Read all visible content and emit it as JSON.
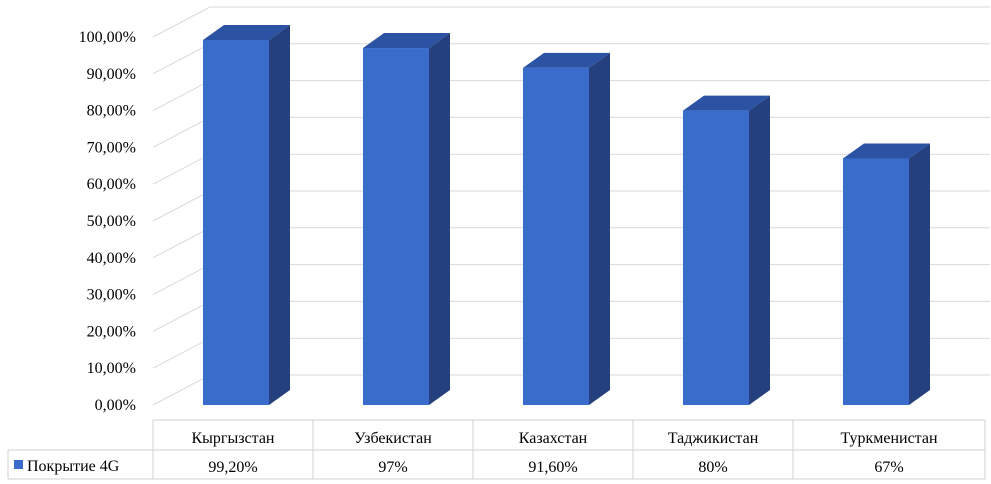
{
  "chart_data": {
    "type": "bar",
    "categories": [
      "Кыргызстан",
      "Узбекистан",
      "Казахстан",
      "Таджикистан",
      "Туркменистан"
    ],
    "series": [
      {
        "name": "Покрытие 4G",
        "values": [
          99.2,
          97,
          91.6,
          80,
          67
        ],
        "labels": [
          "99,20%",
          "97%",
          "91,60%",
          "80%",
          "67%"
        ],
        "color": "#3A6DCB"
      }
    ],
    "ylim": [
      0,
      100
    ],
    "yticks": [
      "0,00%",
      "10,00%",
      "20,00%",
      "30,00%",
      "40,00%",
      "50,00%",
      "60,00%",
      "70,00%",
      "80,00%",
      "90,00%",
      "100,00%"
    ],
    "grid": true,
    "legend": "data-table",
    "colors": {
      "bar_front": "#3A6DCB",
      "bar_side": "#24407E",
      "bar_top": "#2C52A3",
      "grid": "#D9D9D9"
    }
  }
}
